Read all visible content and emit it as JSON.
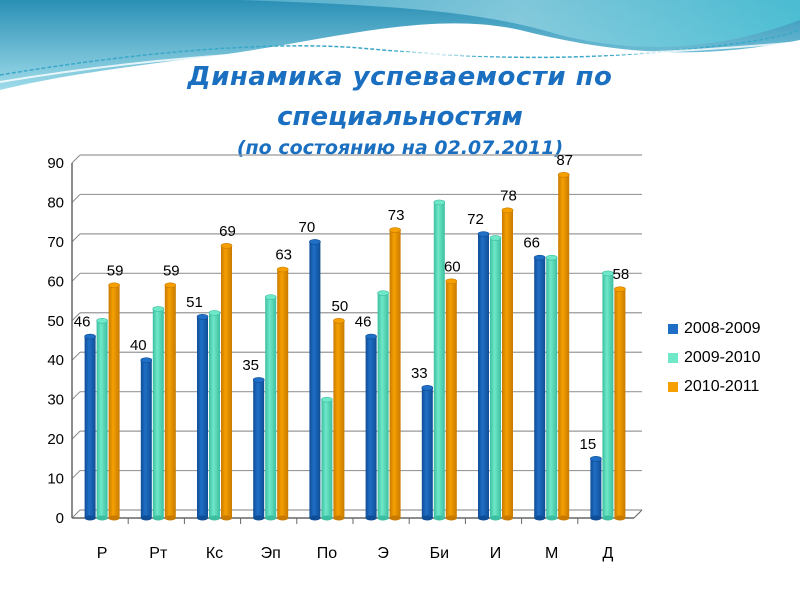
{
  "slide": {
    "title_line1": "Динамика успеваемости по",
    "title_line2": "специальностям",
    "subtitle": "(по состоянию на 02.07.2011)"
  },
  "colors": {
    "series_2008_2009": "#1f6fc6",
    "series_2009_2010": "#6fe8c8",
    "series_2010_2011": "#f5a000",
    "title": "#1a6fc0",
    "grid": "#888888"
  },
  "legend": [
    {
      "label": "2008-2009",
      "color": "#1f6fc6"
    },
    {
      "label": "2009-2010",
      "color": "#6fe8c8"
    },
    {
      "label": "2010-2011",
      "color": "#f5a000"
    }
  ],
  "chart_data": {
    "type": "bar",
    "title": "Динамика успеваемости по специальностям (по состоянию на 02.07.2011)",
    "xlabel": "",
    "ylabel": "",
    "ylim": [
      0,
      90
    ],
    "yticks": [
      0,
      10,
      20,
      30,
      40,
      50,
      60,
      70,
      80,
      90
    ],
    "grid": true,
    "legend_position": "right",
    "categories": [
      "Р",
      "Рт",
      "Кс",
      "Эп",
      "По",
      "Э",
      "Би",
      "И",
      "М",
      "Д"
    ],
    "series": [
      {
        "name": "2008-2009",
        "values": [
          46,
          40,
          51,
          35,
          70,
          46,
          33,
          72,
          66,
          15
        ],
        "labeled": true
      },
      {
        "name": "2009-2010",
        "values": [
          50,
          53,
          52,
          56,
          30,
          57,
          80,
          71,
          66,
          62
        ],
        "labeled": false
      },
      {
        "name": "2010-2011",
        "values": [
          59,
          59,
          69,
          63,
          50,
          73,
          60,
          78,
          87,
          58
        ],
        "labeled": true
      }
    ]
  }
}
